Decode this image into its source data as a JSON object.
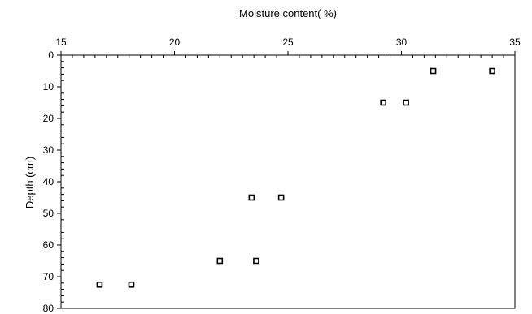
{
  "chart_data": {
    "type": "scatter",
    "title": "",
    "xlabel": "Moisture content( %)",
    "ylabel": "Depth (cm)",
    "x_axis_position": "top",
    "y_axis_inverted": true,
    "xlim": [
      15,
      35
    ],
    "ylim": [
      0,
      80
    ],
    "x_ticks": [
      15,
      20,
      25,
      30,
      35
    ],
    "y_ticks": [
      0,
      10,
      20,
      30,
      40,
      50,
      60,
      70,
      80
    ],
    "grid": false,
    "marker": "open-square",
    "color": "#000000",
    "points": [
      {
        "x": 31.4,
        "y": 5
      },
      {
        "x": 34.0,
        "y": 5
      },
      {
        "x": 29.2,
        "y": 15
      },
      {
        "x": 30.2,
        "y": 15
      },
      {
        "x": 23.4,
        "y": 45
      },
      {
        "x": 24.7,
        "y": 45
      },
      {
        "x": 22.0,
        "y": 65
      },
      {
        "x": 23.6,
        "y": 65
      },
      {
        "x": 16.7,
        "y": 72.5
      },
      {
        "x": 18.1,
        "y": 72.5
      }
    ]
  }
}
